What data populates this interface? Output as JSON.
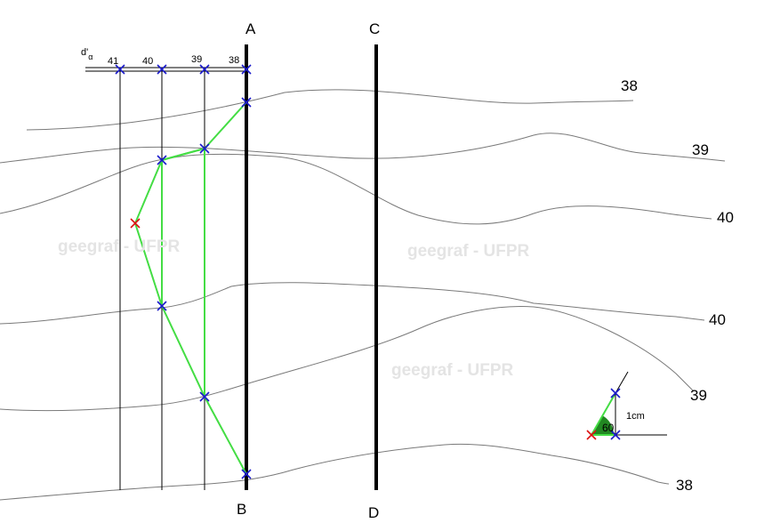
{
  "lines": {
    "left": "A",
    "left_bottom": "B",
    "right": "C",
    "right_bottom": "D"
  },
  "scale": {
    "symbol": "d'",
    "subscript": "α",
    "ticks": [
      "41",
      "40",
      "39",
      "38"
    ]
  },
  "contours": [
    "38",
    "39",
    "40",
    "40",
    "39",
    "38"
  ],
  "watermarks": [
    "geegraf - UFPR",
    "geegraf - UFPR",
    "geegraf - UFPR"
  ],
  "triangle": {
    "angle": "60",
    "length": "1cm"
  },
  "colors": {
    "green": "#44dd44",
    "blue": "#1a1acc",
    "red": "#dd1111",
    "contour": "#808080"
  }
}
